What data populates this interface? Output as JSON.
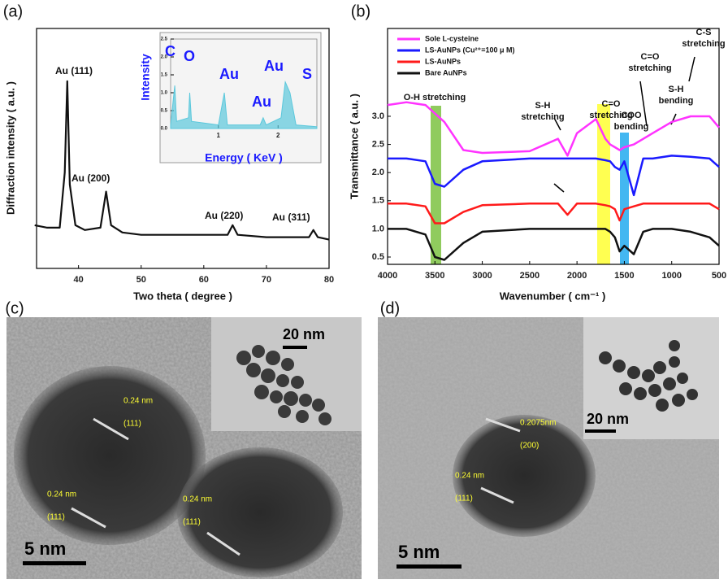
{
  "chart_data": [
    {
      "type": "line",
      "panel_label": "(a)",
      "xlabel": "Two theta ( degree )",
      "ylabel": "Diffraction intensity ( a.u. )",
      "xlim": [
        33.3,
        80
      ],
      "xticks": [
        40,
        50,
        60,
        70,
        80
      ],
      "ylim": [
        0,
        100
      ],
      "color": "#111111",
      "x": [
        33,
        35,
        37,
        37.8,
        38.2,
        38.6,
        39.5,
        41,
        43.5,
        44.4,
        45.2,
        47,
        50,
        55,
        60,
        63.8,
        64.6,
        65.4,
        70,
        76.8,
        77.5,
        78.2,
        80
      ],
      "values": [
        18,
        17,
        17,
        40,
        78,
        35,
        18,
        16,
        17,
        32,
        18,
        15,
        14,
        14,
        14,
        14,
        18,
        14,
        13,
        13,
        16,
        13,
        12
      ],
      "annotations": [
        "Au (111)",
        "Au (200)",
        "Au (220)",
        "Au (311)"
      ]
    },
    {
      "type": "area",
      "xlabel": "Energy ( KeV )",
      "ylabel": "Intensity",
      "xlim": [
        0.2,
        2.65
      ],
      "xticks": [
        1,
        2
      ],
      "ylim": [
        0,
        2.5
      ],
      "yticks": [
        {
          "value": 0,
          "label": "0.0"
        },
        0.5,
        {
          "value": 1,
          "label": "1.0"
        },
        1.5,
        {
          "value": 2,
          "label": "2.0"
        },
        2.5
      ],
      "color": "#5bc8dc",
      "x": [
        0.2,
        0.27,
        0.3,
        0.5,
        0.52,
        0.55,
        1.0,
        1.1,
        1.15,
        1.7,
        1.75,
        1.8,
        2.05,
        2.12,
        2.2,
        2.3,
        2.65
      ],
      "values": [
        0.1,
        1.2,
        0.2,
        0.3,
        1.0,
        0.2,
        0.1,
        1.0,
        0.1,
        0.1,
        0.3,
        0.1,
        0.3,
        1.3,
        1.0,
        0.1,
        0.05
      ],
      "annotations": [
        "C",
        "O",
        "Au",
        "Au",
        "Au",
        "S"
      ]
    },
    {
      "type": "line",
      "panel_label": "(b)",
      "xlabel": "Wavenumber  ( cm⁻¹ )",
      "ylabel": "Transmittance  ( a.u. )",
      "xlim": [
        4000,
        500
      ],
      "xticks": [
        4000,
        3500,
        3000,
        2500,
        2000,
        1500,
        1000,
        500
      ],
      "ylim": [
        0.37,
        4.56
      ],
      "yticks": [
        0.5,
        {
          "value": 1,
          "label": "1.0"
        },
        1.5,
        {
          "value": 2,
          "label": "2.0"
        },
        2.5,
        {
          "value": 3,
          "label": "3.0"
        }
      ],
      "x": [
        4000,
        3800,
        3600,
        3500,
        3400,
        3200,
        3000,
        2500,
        2200,
        2100,
        2000,
        1800,
        1700,
        1650,
        1600,
        1550,
        1500,
        1400,
        1300,
        1200,
        1000,
        800,
        600,
        500
      ],
      "series": [
        {
          "name": "Sole L-cysteine",
          "color": "#ff33ff",
          "values": [
            3.2,
            3.25,
            3.2,
            3.05,
            2.9,
            2.4,
            2.35,
            2.38,
            2.6,
            2.3,
            2.7,
            2.95,
            2.6,
            2.5,
            2.45,
            2.4,
            2.45,
            2.5,
            2.6,
            2.7,
            2.9,
            3.0,
            3.0,
            2.8
          ]
        },
        {
          "name": "LS-AuNPs (Cu²⁺=100 μ M)",
          "color": "#1a1aff",
          "values": [
            2.25,
            2.25,
            2.2,
            1.8,
            1.75,
            2.05,
            2.2,
            2.25,
            2.25,
            2.25,
            2.25,
            2.25,
            2.22,
            2.2,
            2.1,
            2.05,
            2.2,
            1.6,
            2.25,
            2.25,
            2.3,
            2.28,
            2.25,
            2.1
          ]
        },
        {
          "name": "LS-AuNPs",
          "color": "#ff1a1a",
          "values": [
            1.45,
            1.45,
            1.4,
            1.1,
            1.1,
            1.3,
            1.42,
            1.45,
            1.45,
            1.25,
            1.45,
            1.45,
            1.42,
            1.4,
            1.35,
            1.15,
            1.35,
            1.4,
            1.45,
            1.45,
            1.45,
            1.45,
            1.45,
            1.35
          ]
        },
        {
          "name": "Bare AuNPs",
          "color": "#111111",
          "values": [
            1.0,
            1.0,
            0.9,
            0.5,
            0.45,
            0.75,
            0.95,
            1.0,
            1.0,
            1.0,
            1.0,
            1.0,
            1.0,
            0.95,
            0.85,
            0.6,
            0.7,
            0.55,
            0.95,
            1.0,
            1.0,
            0.95,
            0.85,
            0.7
          ]
        }
      ],
      "annotations": [
        [
          "O-H stretching"
        ],
        [
          "S-H",
          "stretching"
        ],
        [
          "C=O",
          "stretching"
        ],
        [
          "COO",
          "bending"
        ],
        [
          "C=O",
          "stretching"
        ],
        [
          "S-H",
          "bending"
        ],
        [
          "C-S",
          "stretching"
        ]
      ]
    }
  ],
  "figure": {
    "tem_panels": [
      {
        "label": "(c)",
        "scale_bar": "5 nm",
        "inset_scale_bar": "20 nm",
        "lattice_labels": [
          {
            "spacing": "0.24 nm",
            "plane": "(111)"
          },
          {
            "spacing": "0.24 nm",
            "plane": "(111)"
          },
          {
            "spacing": "0.24 nm",
            "plane": "(111)"
          }
        ]
      },
      {
        "label": "(d)",
        "scale_bar": "5 nm",
        "inset_scale_bar": "20 nm",
        "lattice_labels": [
          {
            "spacing": "0.2075nm",
            "plane": "(200)"
          },
          {
            "spacing": "0.24 nm",
            "plane": "(111)"
          }
        ]
      }
    ]
  }
}
